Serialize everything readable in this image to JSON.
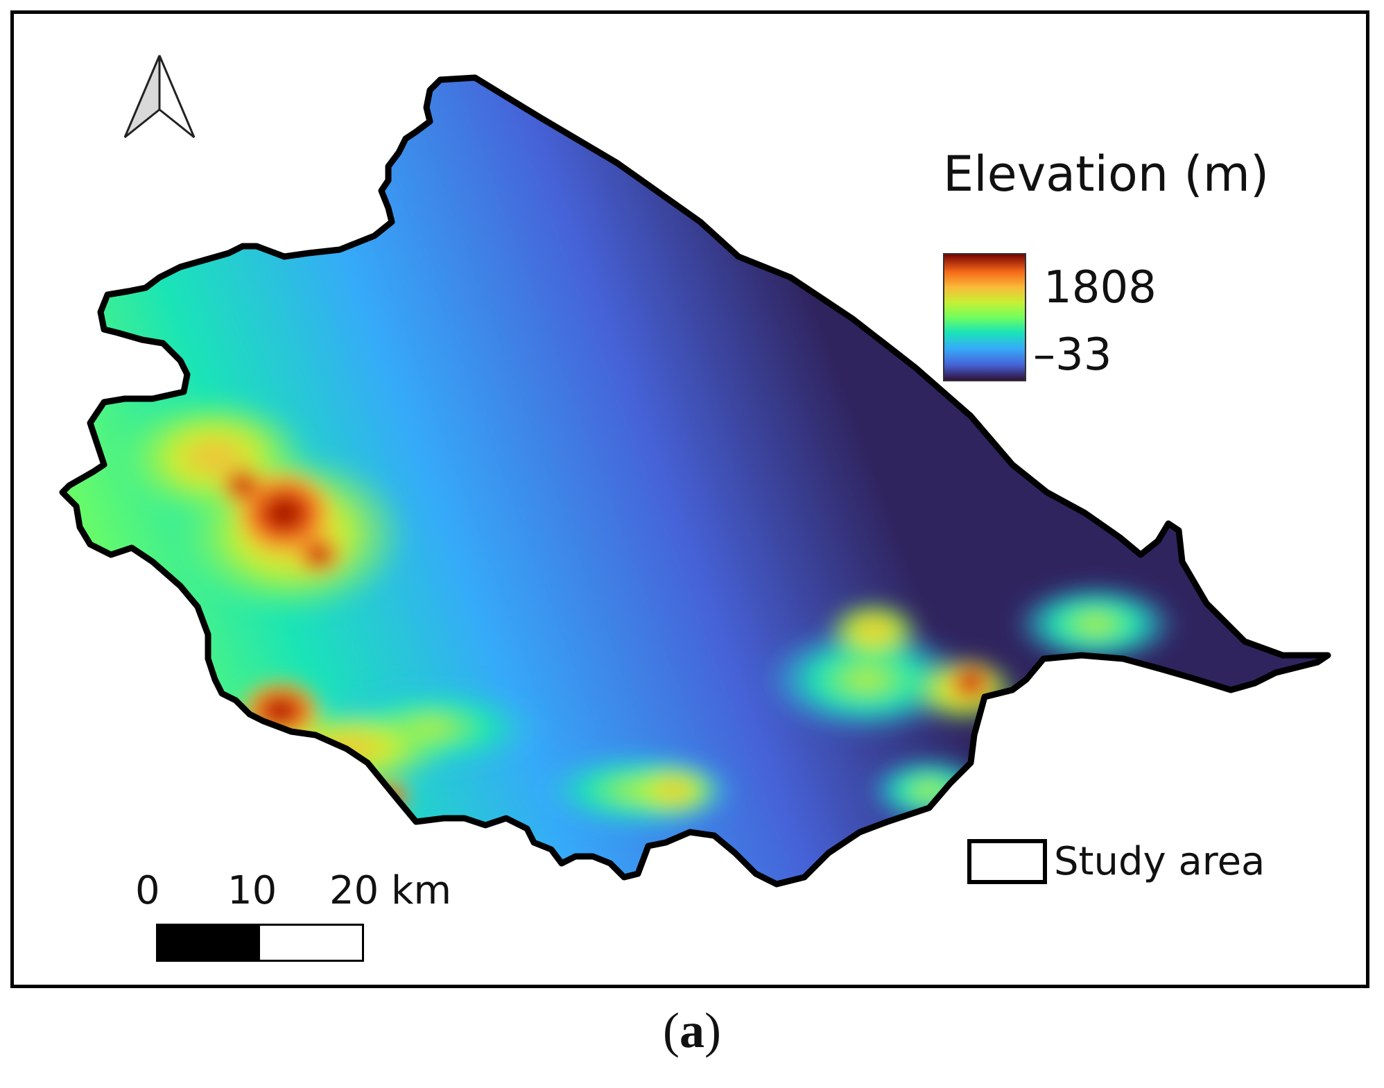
{
  "legend": {
    "title": "Elevation (m)",
    "max_label": "1808",
    "min_label": "–33",
    "color_ramp": [
      "#30123b",
      "#4662d7",
      "#36aaf9",
      "#1ae4b6",
      "#72fe5e",
      "#c8ef34",
      "#faba39",
      "#f66b19",
      "#ca2a04",
      "#7a0403"
    ]
  },
  "study_area": {
    "label": "Study area"
  },
  "scale_bar": {
    "ticks": [
      "0",
      "10",
      "20 km"
    ]
  },
  "north_arrow": {
    "icon": "north-arrow-icon"
  },
  "panel": {
    "open": "(",
    "letter": "a",
    "close": ")"
  },
  "colors": {
    "lowland": "#30245f",
    "boundary": "#000000"
  }
}
